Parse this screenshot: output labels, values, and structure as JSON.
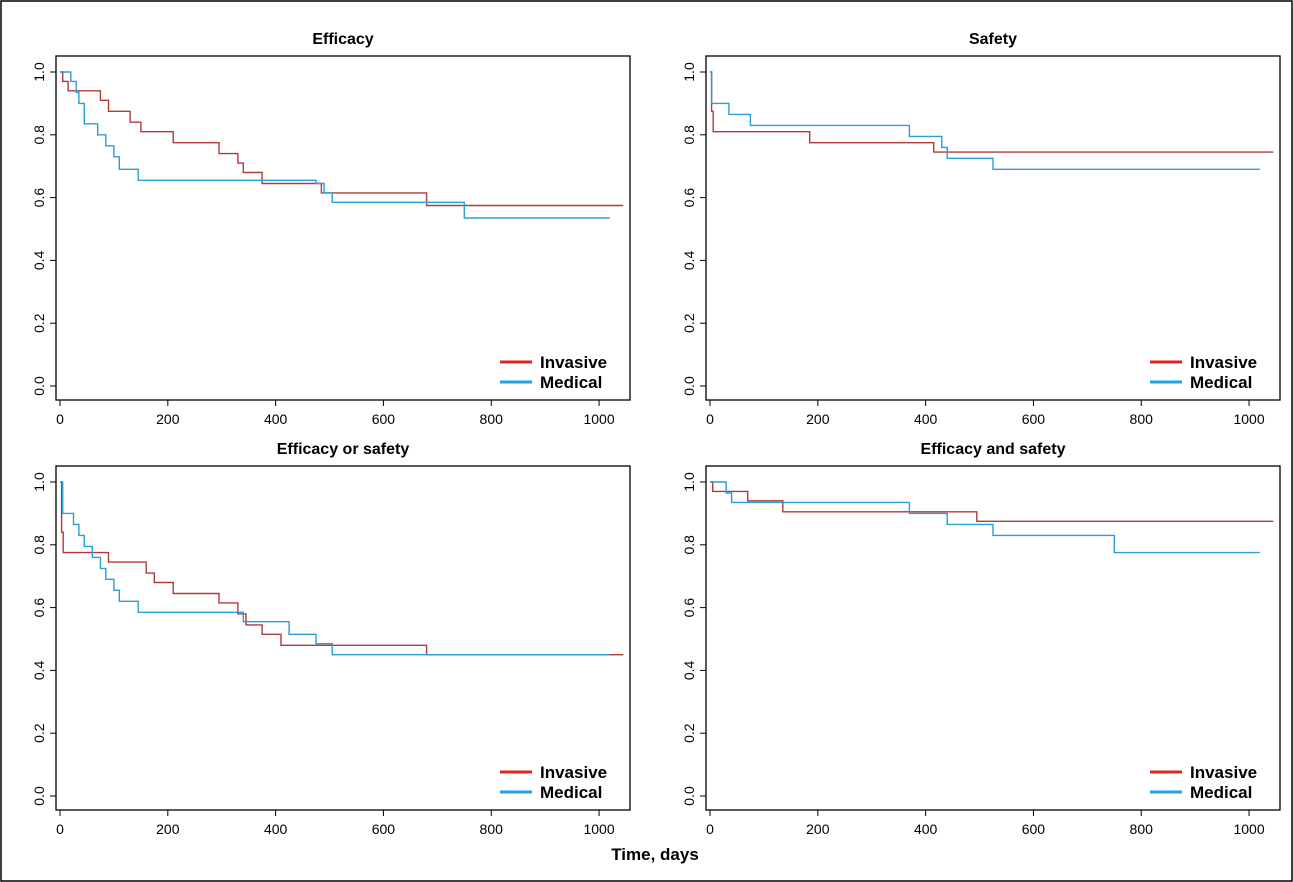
{
  "figure": {
    "xlabel": "Time, days"
  },
  "colors": {
    "invasive": "#b03a3a",
    "medical": "#2a9fd6",
    "legend_invasive": "#e0231c",
    "legend_medical": "#1fa2e0",
    "axis": "#000000"
  },
  "chart_data": [
    {
      "type": "line",
      "step": true,
      "title": "Efficacy",
      "xlabel": "",
      "ylabel": "",
      "xlim": [
        0,
        1050
      ],
      "ylim": [
        0,
        1.0
      ],
      "xticks": [
        "0",
        "200",
        "400",
        "600",
        "800",
        "1000"
      ],
      "yticks": [
        "0.0",
        "0.2",
        "0.4",
        "0.6",
        "0.8",
        "1.0"
      ],
      "legend": {
        "position": "bottom-right",
        "entries": [
          "Invasive",
          "Medical"
        ]
      },
      "series": [
        {
          "name": "Invasive",
          "color": "invasive",
          "x": [
            0,
            5,
            15,
            75,
            90,
            130,
            150,
            210,
            295,
            330,
            340,
            375,
            485,
            680,
            1045
          ],
          "y": [
            1.0,
            0.97,
            0.94,
            0.91,
            0.875,
            0.84,
            0.81,
            0.775,
            0.74,
            0.71,
            0.68,
            0.645,
            0.615,
            0.575,
            0.575
          ]
        },
        {
          "name": "Medical",
          "color": "medical",
          "x": [
            0,
            20,
            30,
            35,
            45,
            70,
            85,
            100,
            110,
            145,
            475,
            490,
            505,
            750,
            1020
          ],
          "y": [
            1.0,
            0.97,
            0.935,
            0.9,
            0.835,
            0.8,
            0.765,
            0.73,
            0.69,
            0.655,
            0.645,
            0.615,
            0.585,
            0.535,
            0.535
          ]
        }
      ]
    },
    {
      "type": "line",
      "step": true,
      "title": "Safety",
      "xlabel": "",
      "ylabel": "",
      "xlim": [
        0,
        1050
      ],
      "ylim": [
        0,
        1.0
      ],
      "xticks": [
        "0",
        "200",
        "400",
        "600",
        "800",
        "1000"
      ],
      "yticks": [
        "0.0",
        "0.2",
        "0.4",
        "0.6",
        "0.8",
        "1.0"
      ],
      "legend": {
        "position": "bottom-right",
        "entries": [
          "Invasive",
          "Medical"
        ]
      },
      "series": [
        {
          "name": "Invasive",
          "color": "invasive",
          "x": [
            0,
            3,
            6,
            185,
            415,
            430,
            1045
          ],
          "y": [
            1.0,
            0.875,
            0.81,
            0.775,
            0.745,
            0.745,
            0.745
          ]
        },
        {
          "name": "Medical",
          "color": "medical",
          "x": [
            0,
            3,
            35,
            75,
            370,
            430,
            440,
            525,
            1020
          ],
          "y": [
            1.0,
            0.9,
            0.865,
            0.83,
            0.795,
            0.76,
            0.725,
            0.69,
            0.69
          ]
        }
      ]
    },
    {
      "type": "line",
      "step": true,
      "title": "Efficacy or safety",
      "xlabel": "",
      "ylabel": "",
      "xlim": [
        0,
        1050
      ],
      "ylim": [
        0,
        1.0
      ],
      "xticks": [
        "0",
        "200",
        "400",
        "600",
        "800",
        "1000"
      ],
      "yticks": [
        "0.0",
        "0.2",
        "0.4",
        "0.6",
        "0.8",
        "1.0"
      ],
      "legend": {
        "position": "bottom-right",
        "entries": [
          "Invasive",
          "Medical"
        ]
      },
      "series": [
        {
          "name": "Invasive",
          "color": "invasive",
          "x": [
            0,
            3,
            6,
            90,
            160,
            175,
            210,
            295,
            330,
            345,
            375,
            410,
            680,
            1045
          ],
          "y": [
            1.0,
            0.84,
            0.775,
            0.745,
            0.71,
            0.68,
            0.645,
            0.615,
            0.58,
            0.545,
            0.515,
            0.48,
            0.45,
            0.45
          ]
        },
        {
          "name": "Medical",
          "color": "medical",
          "x": [
            0,
            5,
            25,
            35,
            45,
            60,
            75,
            85,
            100,
            110,
            145,
            340,
            425,
            475,
            505,
            1020
          ],
          "y": [
            1.0,
            0.9,
            0.865,
            0.83,
            0.795,
            0.76,
            0.725,
            0.69,
            0.655,
            0.62,
            0.585,
            0.555,
            0.515,
            0.485,
            0.45,
            0.45
          ]
        }
      ]
    },
    {
      "type": "line",
      "step": true,
      "title": "Efficacy and safety",
      "xlabel": "",
      "ylabel": "",
      "xlim": [
        0,
        1050
      ],
      "ylim": [
        0,
        1.0
      ],
      "xticks": [
        "0",
        "200",
        "400",
        "600",
        "800",
        "1000"
      ],
      "yticks": [
        "0.0",
        "0.2",
        "0.4",
        "0.6",
        "0.8",
        "1.0"
      ],
      "legend": {
        "position": "bottom-right",
        "entries": [
          "Invasive",
          "Medical"
        ]
      },
      "series": [
        {
          "name": "Invasive",
          "color": "invasive",
          "x": [
            0,
            5,
            70,
            135,
            495,
            1045
          ],
          "y": [
            1.0,
            0.97,
            0.94,
            0.905,
            0.875,
            0.875
          ]
        },
        {
          "name": "Medical",
          "color": "medical",
          "x": [
            0,
            30,
            40,
            370,
            440,
            525,
            750,
            1020
          ],
          "y": [
            1.0,
            0.965,
            0.935,
            0.9,
            0.865,
            0.83,
            0.775,
            0.775
          ]
        }
      ]
    }
  ]
}
